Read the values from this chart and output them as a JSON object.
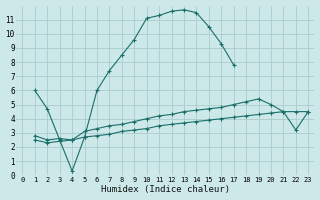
{
  "xlabel": "Humidex (Indice chaleur)",
  "background_color": "#cce8e8",
  "grid_color": "#aacccc",
  "line_color": "#1a6e6a",
  "xlim": [
    -0.5,
    23.5
  ],
  "ylim": [
    0,
    12
  ],
  "xticks": [
    0,
    1,
    2,
    3,
    4,
    5,
    6,
    7,
    8,
    9,
    10,
    11,
    12,
    13,
    14,
    15,
    16,
    17,
    18,
    19,
    20,
    21,
    22,
    23
  ],
  "yticks": [
    0,
    1,
    2,
    3,
    4,
    5,
    6,
    7,
    8,
    9,
    10,
    11
  ],
  "series": [
    {
      "x": [
        1,
        2,
        3,
        4,
        5,
        6,
        7,
        8,
        9,
        10,
        11,
        12,
        13,
        14,
        15,
        16,
        17
      ],
      "y": [
        6.0,
        4.7,
        2.5,
        0.3,
        2.7,
        6.0,
        7.4,
        8.5,
        9.6,
        11.1,
        11.3,
        11.6,
        11.7,
        11.5,
        10.5,
        9.3,
        7.8
      ]
    },
    {
      "x": [
        1,
        2,
        3,
        4,
        5,
        6,
        7,
        8,
        9,
        10,
        11,
        12,
        13,
        14,
        15,
        16,
        17,
        18,
        19,
        20,
        21,
        22,
        23
      ],
      "y": [
        2.8,
        2.5,
        2.6,
        2.5,
        3.1,
        3.3,
        3.5,
        3.6,
        3.8,
        4.0,
        4.2,
        4.3,
        4.5,
        4.6,
        4.7,
        4.8,
        5.0,
        5.2,
        5.4,
        5.0,
        4.5,
        3.2,
        4.5
      ]
    },
    {
      "x": [
        1,
        2,
        3,
        4,
        5,
        6,
        7,
        8,
        9,
        10,
        11,
        12,
        13,
        14,
        15,
        16,
        17,
        18,
        19,
        20,
        21,
        22,
        23
      ],
      "y": [
        2.5,
        2.3,
        2.4,
        2.5,
        2.7,
        2.8,
        2.9,
        3.1,
        3.2,
        3.3,
        3.5,
        3.6,
        3.7,
        3.8,
        3.9,
        4.0,
        4.1,
        4.2,
        4.3,
        4.4,
        4.5,
        4.5,
        4.5
      ]
    }
  ]
}
